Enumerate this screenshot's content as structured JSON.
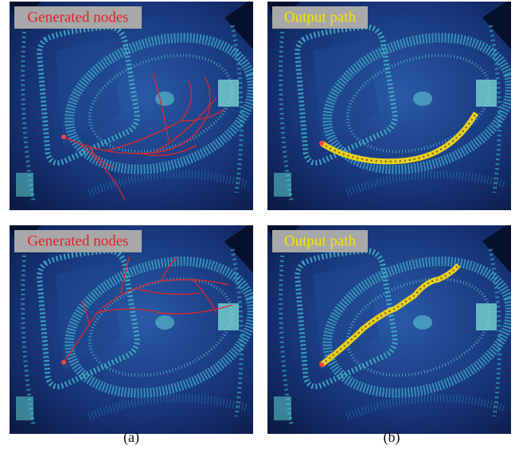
{
  "panels": [
    {
      "label": "Generated nodes"
    },
    {
      "label": "Output path"
    },
    {
      "label": "Generated nodes"
    },
    {
      "label": "Output path"
    }
  ],
  "captions": [
    "(a)",
    "(b)"
  ]
}
